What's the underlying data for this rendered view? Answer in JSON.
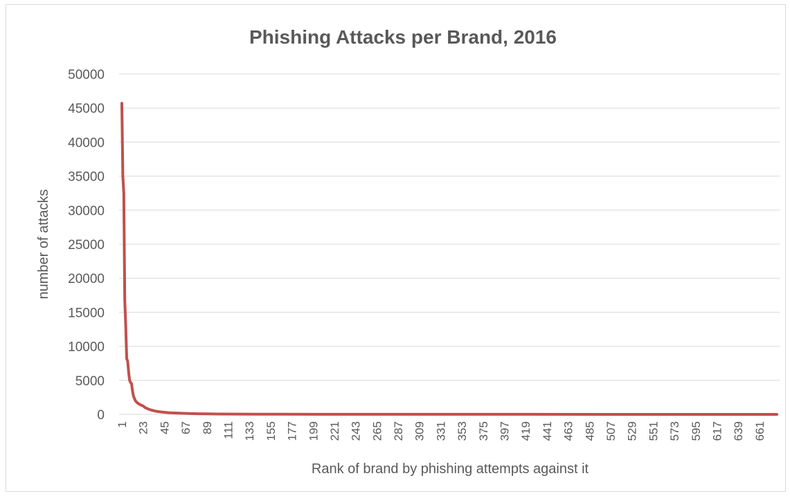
{
  "chart_data": {
    "type": "line",
    "title": "Phishing Attacks per Brand, 2016",
    "xlabel": "Rank of brand by phishing attempts against it",
    "ylabel": "number of attacks",
    "ylim": [
      0,
      50000
    ],
    "y_ticks": [
      "0",
      "5000",
      "10000",
      "15000",
      "20000",
      "25000",
      "30000",
      "35000",
      "40000",
      "45000",
      "50000"
    ],
    "x_ticks": [
      "1",
      "23",
      "45",
      "67",
      "89",
      "111",
      "133",
      "155",
      "177",
      "199",
      "221",
      "243",
      "265",
      "287",
      "309",
      "331",
      "353",
      "375",
      "397",
      "419",
      "441",
      "463",
      "485",
      "507",
      "529",
      "551",
      "573",
      "595",
      "617",
      "639",
      "661"
    ],
    "x_max": 679,
    "grid": true,
    "legend": "none",
    "color": "#c0504d",
    "series": [
      {
        "x": [
          1,
          2,
          3,
          4,
          5,
          6,
          7,
          8,
          9,
          10,
          11,
          12,
          13,
          15,
          17,
          19,
          21,
          23,
          25,
          28,
          31,
          35,
          40,
          45,
          50,
          56,
          62,
          70,
          80,
          90,
          100,
          120,
          140,
          170,
          200,
          300,
          400,
          500,
          600,
          679
        ],
        "values": [
          45700,
          35000,
          32500,
          16800,
          13000,
          8200,
          7800,
          6200,
          5000,
          4700,
          4500,
          3500,
          2700,
          2000,
          1700,
          1500,
          1350,
          1250,
          1000,
          800,
          650,
          500,
          380,
          300,
          240,
          200,
          160,
          120,
          90,
          70,
          55,
          40,
          30,
          20,
          15,
          10,
          7,
          5,
          3,
          2
        ]
      }
    ]
  }
}
